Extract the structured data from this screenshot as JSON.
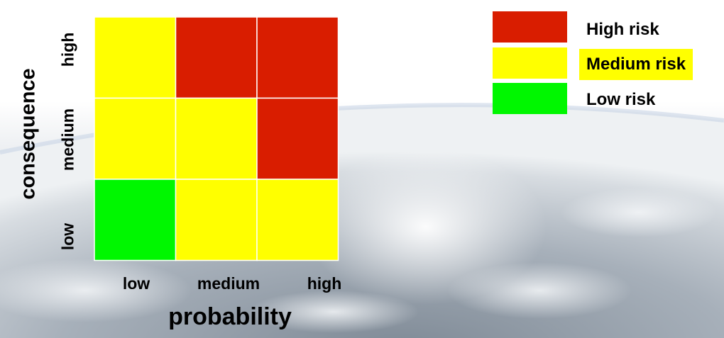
{
  "chart_data": {
    "type": "heatmap",
    "xlabel": "probability",
    "ylabel": "consequence",
    "x_categories": [
      "low",
      "medium",
      "high"
    ],
    "y_categories": [
      "low",
      "medium",
      "high"
    ],
    "cells": [
      [
        "yellow",
        "red",
        "red"
      ],
      [
        "yellow",
        "yellow",
        "red"
      ],
      [
        "green",
        "yellow",
        "yellow"
      ]
    ],
    "colors": {
      "red": "#D91D00",
      "yellow": "#FFFF00",
      "green": "#00F700",
      "text_highlight": "#FFFF00"
    },
    "legend_position": "top-right",
    "legend": [
      {
        "label": "High risk",
        "color": "red",
        "highlighted": false
      },
      {
        "label": "Medium risk",
        "color": "yellow",
        "highlighted": true
      },
      {
        "label": "Low risk",
        "color": "green",
        "highlighted": false
      }
    ]
  }
}
